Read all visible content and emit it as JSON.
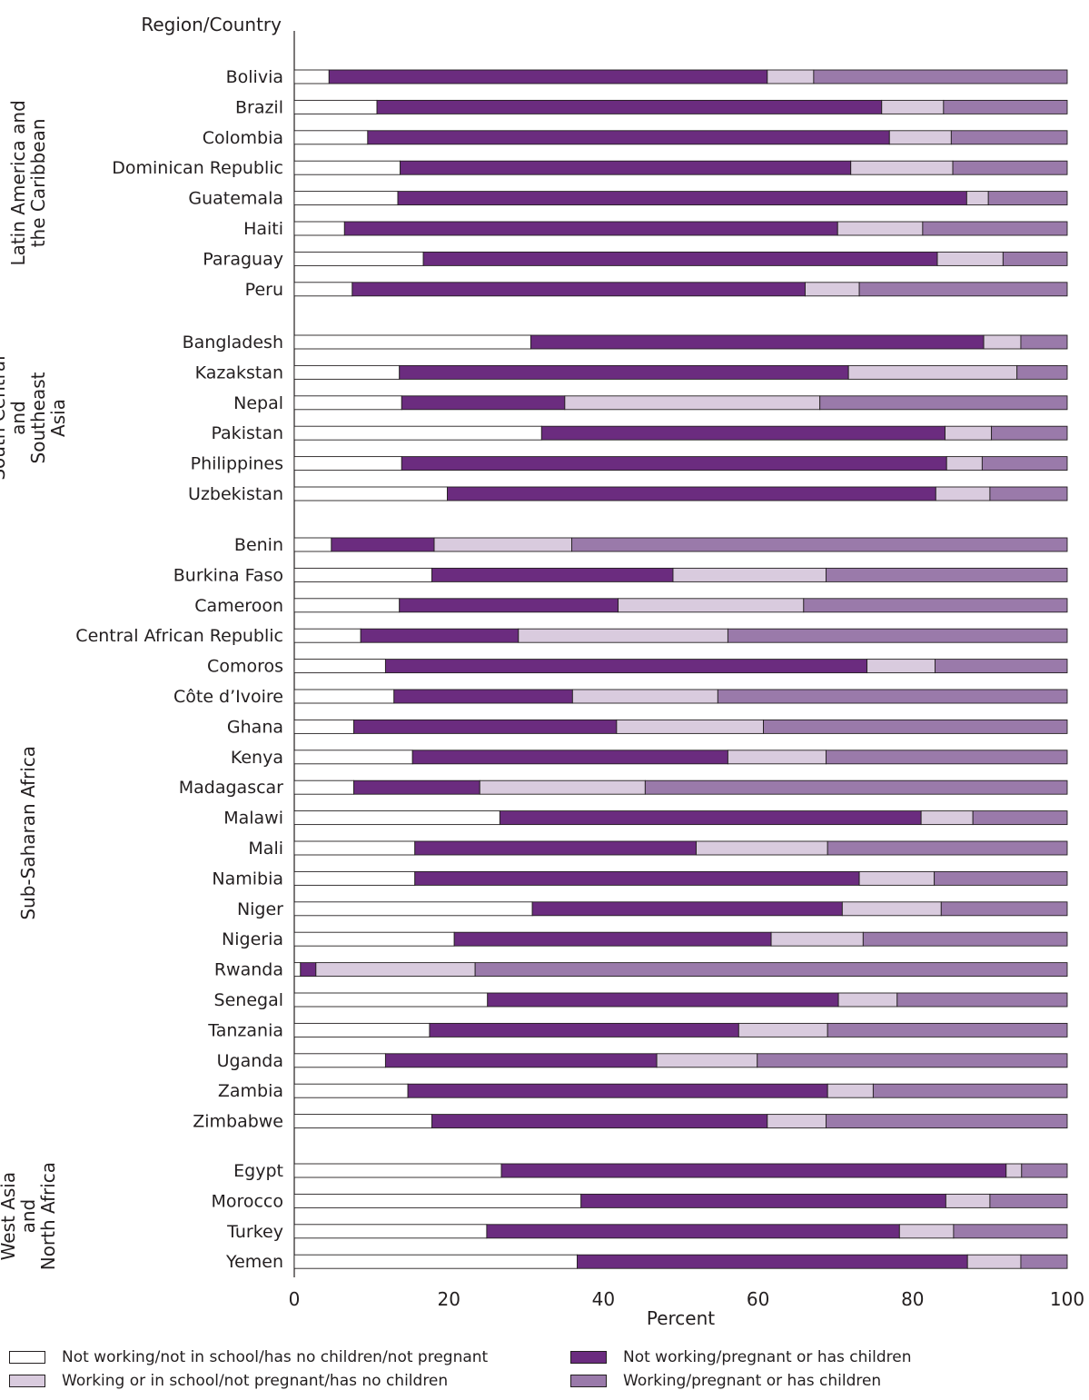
{
  "chart_data": {
    "type": "bar",
    "orientation": "horizontal",
    "stacked": true,
    "category_header": "Region/Country",
    "xlabel": "Percent",
    "xlim": [
      0,
      100
    ],
    "xticks": [
      "0",
      "20",
      "40",
      "60",
      "80",
      "100"
    ],
    "colors": [
      "#ffffff",
      "#6b2c7f",
      "#d9cbde",
      "#9a7aaa"
    ],
    "series": [
      {
        "name": "Not working/not in school/has no children/not pregnant"
      },
      {
        "name": "Not working/pregnant or has children"
      },
      {
        "name": "Working or in school/not pregnant/has no children"
      },
      {
        "name": "Working/pregnant or has children"
      }
    ],
    "groups": [
      {
        "name": "Latin America and the Caribbean",
        "label_lines": [
          "Latin America and",
          "the Caribbean"
        ],
        "categories": [
          {
            "name": "Bolivia",
            "values": [
              4.5,
              56.7,
              6,
              32.8
            ]
          },
          {
            "name": "Brazil",
            "values": [
              10.7,
              65.3,
              8,
              16
            ]
          },
          {
            "name": "Colombia",
            "values": [
              9.5,
              67.5,
              8,
              15
            ]
          },
          {
            "name": "Dominican Republic",
            "values": [
              13.7,
              58.3,
              13.2,
              14.8
            ]
          },
          {
            "name": "Guatemala",
            "values": [
              13.4,
              73.6,
              2.8,
              10.2
            ]
          },
          {
            "name": "Haiti",
            "values": [
              6.5,
              63.8,
              11,
              18.7
            ]
          },
          {
            "name": "Paraguay",
            "values": [
              16.7,
              66.5,
              8.5,
              8.3
            ]
          },
          {
            "name": "Peru",
            "values": [
              7.5,
              58.6,
              7,
              26.9
            ]
          }
        ]
      },
      {
        "name": "South Central and Southeast Asia",
        "label_lines": [
          "South Central",
          "and",
          "Southeast",
          "Asia"
        ],
        "categories": [
          {
            "name": "Bangladesh",
            "values": [
              30.6,
              58.6,
              4.8,
              6
            ]
          },
          {
            "name": "Kazakstan",
            "values": [
              13.6,
              58.1,
              21.8,
              6.5
            ]
          },
          {
            "name": "Nepal",
            "values": [
              13.9,
              21.1,
              33,
              32
            ]
          },
          {
            "name": "Pakistan",
            "values": [
              32,
              52.2,
              6,
              9.8
            ]
          },
          {
            "name": "Philippines",
            "values": [
              13.9,
              70.5,
              4.6,
              11
            ]
          },
          {
            "name": "Uzbekistan",
            "values": [
              19.8,
              63.2,
              7,
              10
            ]
          }
        ]
      },
      {
        "name": "Sub-Saharan Africa",
        "label_lines": [
          "Sub-Saharan Africa"
        ],
        "categories": [
          {
            "name": "Benin",
            "values": [
              4.8,
              13.3,
              17.8,
              64.1
            ]
          },
          {
            "name": "Burkina Faso",
            "values": [
              17.8,
              31.2,
              19.8,
              31.2
            ]
          },
          {
            "name": "Cameroon",
            "values": [
              13.6,
              28.3,
              24,
              34.1
            ]
          },
          {
            "name": "Central African Republic",
            "values": [
              8.6,
              20.4,
              27.1,
              43.9
            ]
          },
          {
            "name": "Comoros",
            "values": [
              11.8,
              62.3,
              8.8,
              17.1
            ]
          },
          {
            "name": "Côte d’Ivoire",
            "values": [
              12.9,
              23.1,
              18.8,
              45.2
            ]
          },
          {
            "name": "Ghana",
            "values": [
              7.7,
              34,
              19,
              39.3
            ]
          },
          {
            "name": "Kenya",
            "values": [
              15.3,
              40.8,
              12.7,
              31.2
            ]
          },
          {
            "name": "Madagascar",
            "values": [
              7.7,
              16.3,
              21.4,
              54.6
            ]
          },
          {
            "name": "Malawi",
            "values": [
              26.6,
              54.5,
              6.7,
              12.2
            ]
          },
          {
            "name": "Mali",
            "values": [
              15.6,
              36.4,
              17,
              31
            ]
          },
          {
            "name": "Namibia",
            "values": [
              15.6,
              57.5,
              9.7,
              17.2
            ]
          },
          {
            "name": "Niger",
            "values": [
              30.8,
              40.1,
              12.8,
              16.3
            ]
          },
          {
            "name": "Nigeria",
            "values": [
              20.7,
              41,
              11.9,
              26.4
            ]
          },
          {
            "name": "Rwanda",
            "values": [
              0.8,
              2,
              20.6,
              76.6
            ]
          },
          {
            "name": "Senegal",
            "values": [
              25,
              45.4,
              7.6,
              22
            ]
          },
          {
            "name": "Tanzania",
            "values": [
              17.5,
              40,
              11.5,
              31
            ]
          },
          {
            "name": "Uganda",
            "values": [
              11.8,
              35.1,
              13,
              40.1
            ]
          },
          {
            "name": "Zambia",
            "values": [
              14.7,
              54.3,
              5.9,
              25.1
            ]
          },
          {
            "name": "Zimbabwe",
            "values": [
              17.8,
              43.4,
              7.6,
              31.2
            ]
          }
        ]
      },
      {
        "name": "West Asia and North Africa",
        "label_lines": [
          "West Asia",
          "and",
          "North Africa"
        ],
        "categories": [
          {
            "name": "Egypt",
            "values": [
              26.8,
              65.3,
              2,
              5.9
            ]
          },
          {
            "name": "Morocco",
            "values": [
              37.1,
              47.2,
              5.7,
              10
            ]
          },
          {
            "name": "Turkey",
            "values": [
              24.9,
              53.4,
              7,
              14.7
            ]
          },
          {
            "name": "Yemen",
            "values": [
              36.6,
              50.5,
              6.9,
              6
            ]
          }
        ]
      }
    ]
  }
}
